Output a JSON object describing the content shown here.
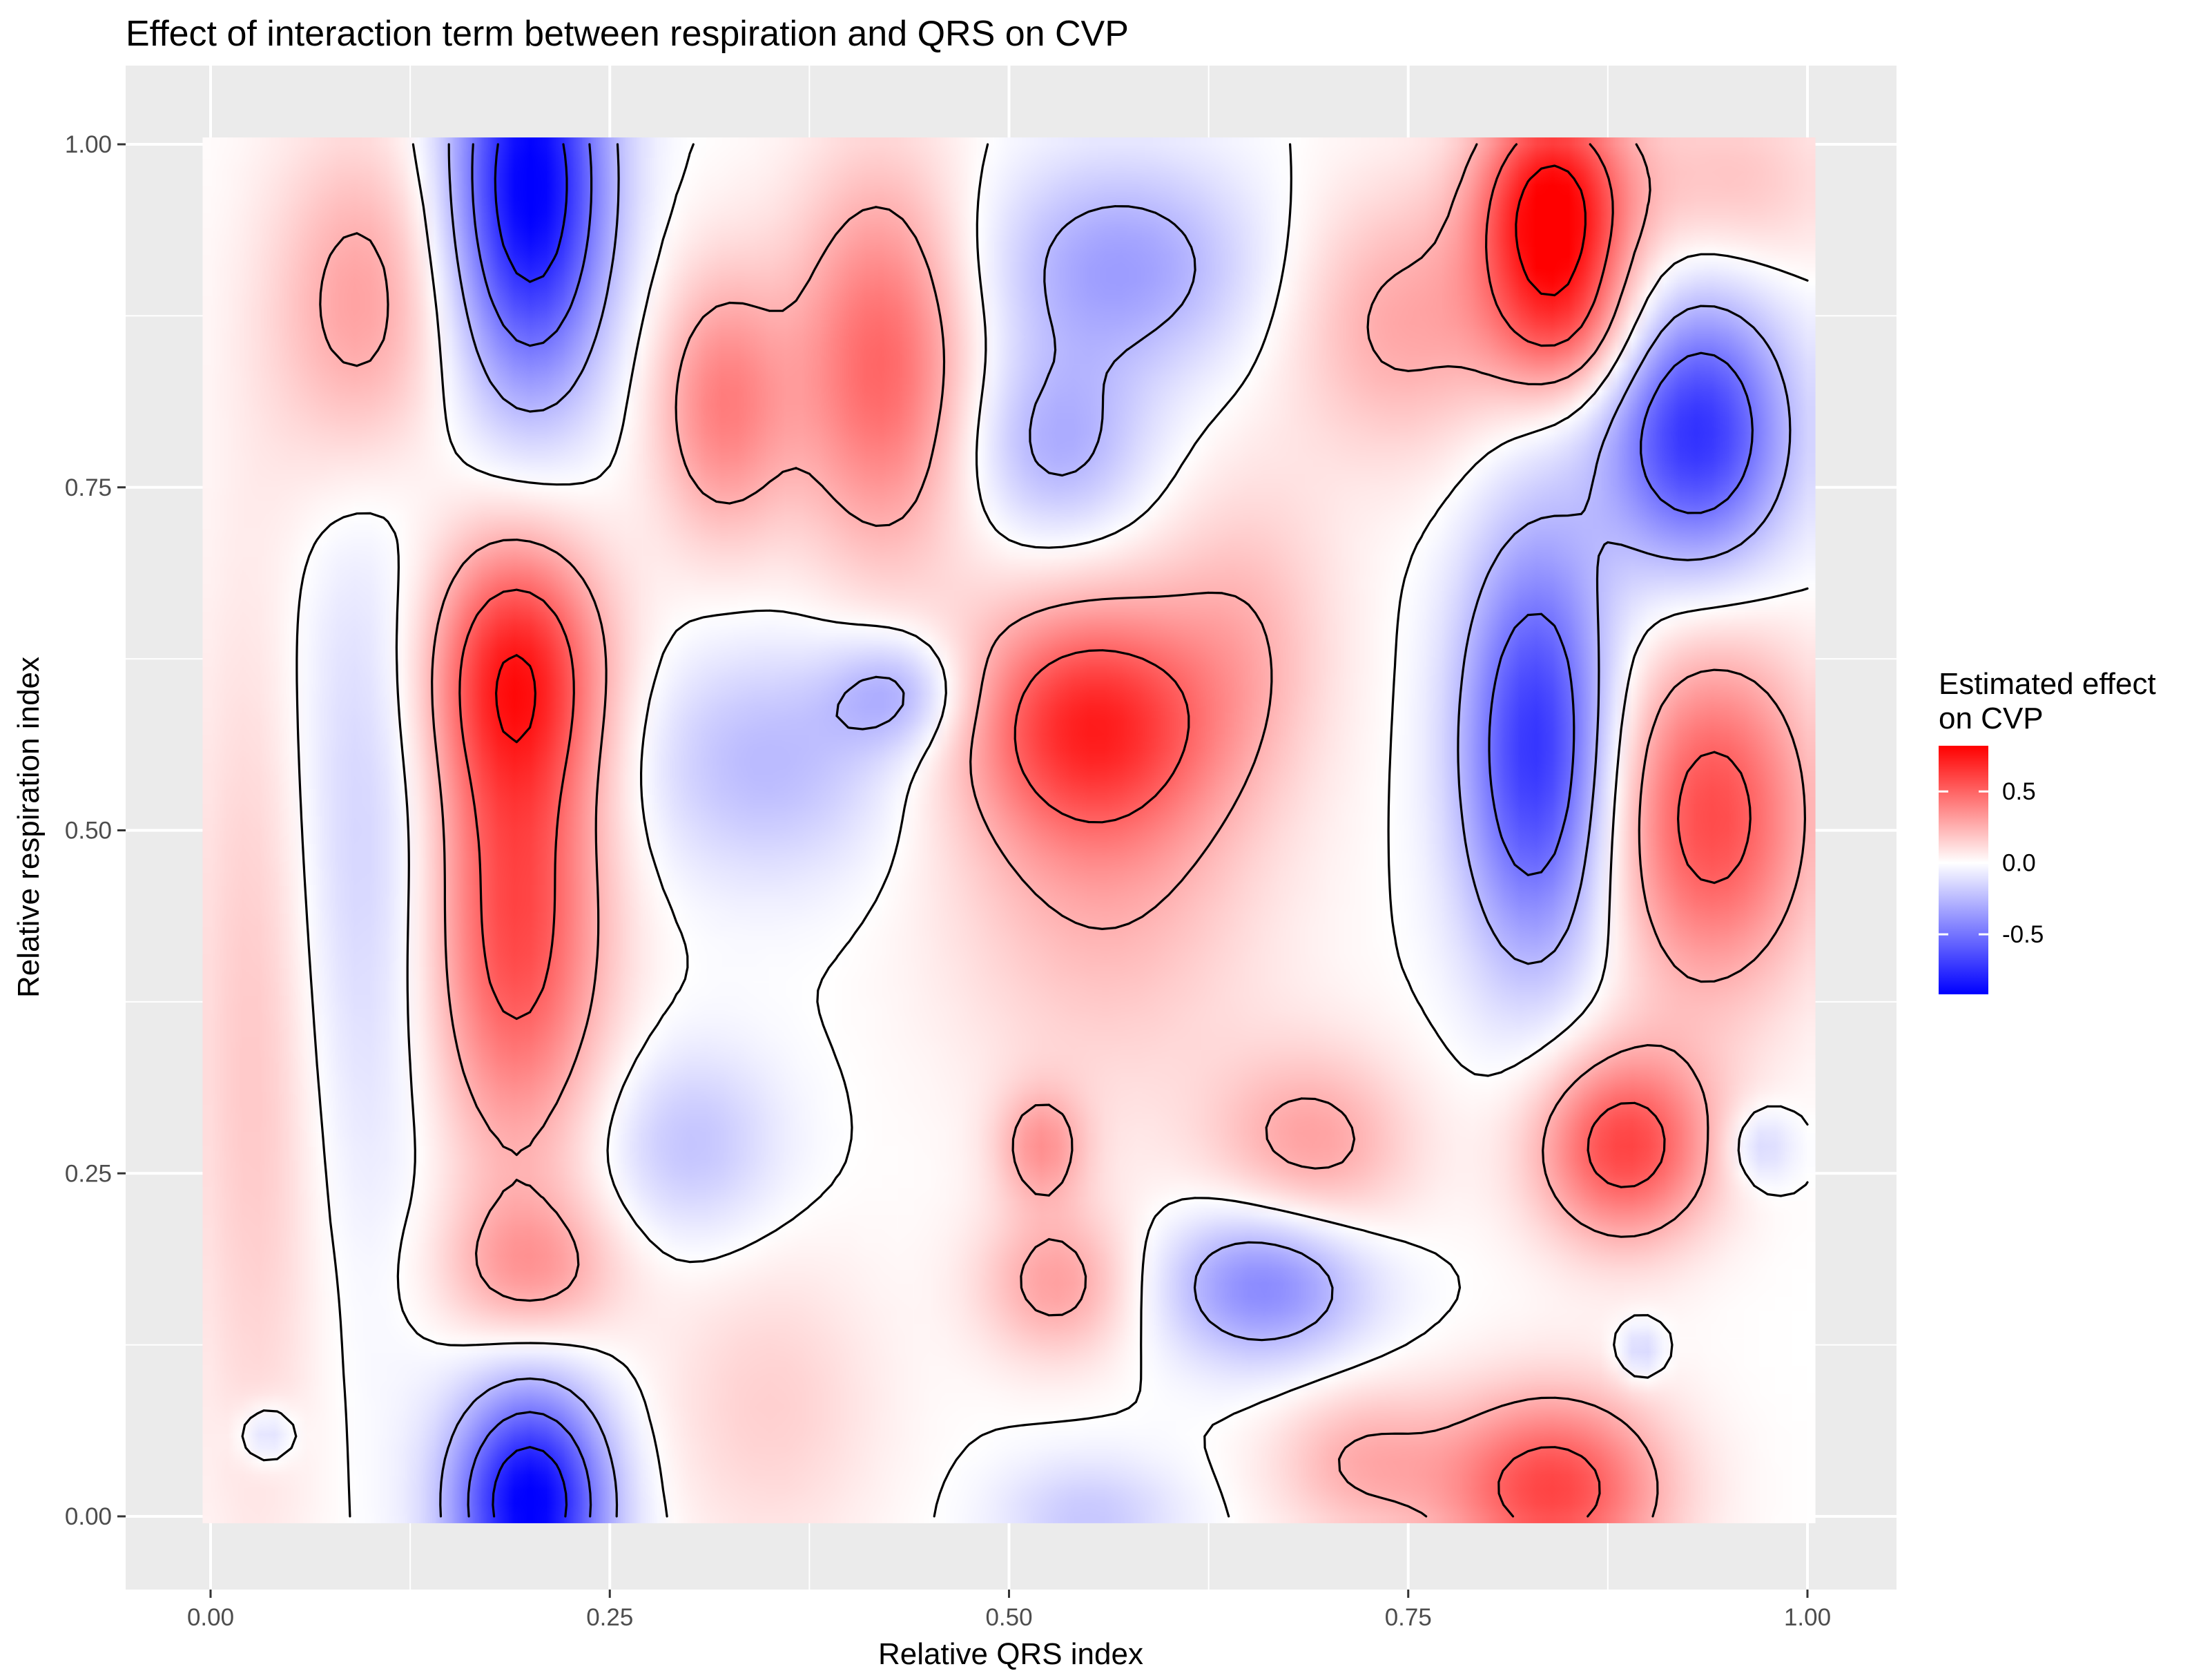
{
  "chart_data": {
    "type": "heatmap",
    "title": "Effect of interaction term between respiration and QRS on CVP",
    "xlabel": "Relative QRS index",
    "ylabel": "Relative respiration index",
    "xlim": [
      -0.05,
      1.05
    ],
    "ylim": [
      -0.05,
      1.05
    ],
    "x_ticks": [
      0.0,
      0.25,
      0.5,
      0.75,
      1.0
    ],
    "x_tick_labels": [
      "0.00",
      "0.25",
      "0.50",
      "0.75",
      "1.00"
    ],
    "y_ticks": [
      0.0,
      0.25,
      0.5,
      0.75,
      1.0
    ],
    "y_tick_labels": [
      "0.00",
      "0.25",
      "0.50",
      "0.75",
      "1.00"
    ],
    "grid": true,
    "legend": {
      "title_lines": [
        "Estimated effect",
        "on CVP"
      ],
      "position": "right",
      "range": [
        -0.92,
        0.82
      ],
      "breaks": [
        0.5,
        0.0,
        -0.5
      ],
      "break_labels": [
        "0.5",
        "0.0",
        "-0.5"
      ],
      "color_low": "#0000FF",
      "color_mid": "#FFFFFF",
      "color_high": "#FF0000"
    },
    "contour_levels": [
      -0.75,
      -0.5,
      -0.25,
      0.0,
      0.25,
      0.5,
      0.75
    ],
    "features": [
      {
        "x": 0.2,
        "y": 0.97,
        "sx": 0.034,
        "sy": 0.105,
        "amp": -0.95
      },
      {
        "x": 0.2,
        "y": 0.01,
        "sx": 0.034,
        "sy": 0.06,
        "amp": -0.95
      },
      {
        "x": 0.095,
        "y": 0.88,
        "sx": 0.04,
        "sy": 0.09,
        "amp": 0.33
      },
      {
        "x": 0.32,
        "y": 0.81,
        "sx": 0.03,
        "sy": 0.07,
        "amp": 0.4
      },
      {
        "x": 0.42,
        "y": 0.84,
        "sx": 0.04,
        "sy": 0.1,
        "amp": 0.5
      },
      {
        "x": 0.19,
        "y": 0.62,
        "sx": 0.04,
        "sy": 0.07,
        "amp": 0.62
      },
      {
        "x": 0.19,
        "y": 0.43,
        "sx": 0.04,
        "sy": 0.12,
        "amp": 0.6
      },
      {
        "x": 0.1,
        "y": 0.5,
        "sx": 0.04,
        "sy": 0.2,
        "amp": -0.2
      },
      {
        "x": 0.57,
        "y": 0.91,
        "sx": 0.06,
        "sy": 0.055,
        "amp": -0.35
      },
      {
        "x": 0.53,
        "y": 0.78,
        "sx": 0.04,
        "sy": 0.05,
        "amp": -0.3
      },
      {
        "x": 0.84,
        "y": 0.95,
        "sx": 0.033,
        "sy": 0.06,
        "amp": 0.85
      },
      {
        "x": 0.745,
        "y": 0.87,
        "sx": 0.05,
        "sy": 0.07,
        "amp": 0.28
      },
      {
        "x": 0.95,
        "y": 0.97,
        "sx": 0.05,
        "sy": 0.05,
        "amp": 0.2
      },
      {
        "x": 0.93,
        "y": 0.79,
        "sx": 0.04,
        "sy": 0.07,
        "amp": -0.75
      },
      {
        "x": 0.85,
        "y": 0.86,
        "sx": 0.035,
        "sy": 0.04,
        "amp": 0.3
      },
      {
        "x": 0.83,
        "y": 0.56,
        "sx": 0.033,
        "sy": 0.11,
        "amp": -0.75
      },
      {
        "x": 0.94,
        "y": 0.51,
        "sx": 0.045,
        "sy": 0.09,
        "amp": 0.58
      },
      {
        "x": 0.55,
        "y": 0.58,
        "sx": 0.055,
        "sy": 0.06,
        "amp": 0.55
      },
      {
        "x": 0.56,
        "y": 0.48,
        "sx": 0.07,
        "sy": 0.12,
        "amp": 0.25
      },
      {
        "x": 0.35,
        "y": 0.55,
        "sx": 0.06,
        "sy": 0.06,
        "amp": -0.25
      },
      {
        "x": 0.43,
        "y": 0.6,
        "sx": 0.03,
        "sy": 0.03,
        "amp": -0.3
      },
      {
        "x": 0.3,
        "y": 0.27,
        "sx": 0.04,
        "sy": 0.05,
        "amp": -0.22
      },
      {
        "x": 0.2,
        "y": 0.18,
        "sx": 0.04,
        "sy": 0.04,
        "amp": 0.3
      },
      {
        "x": 0.66,
        "y": 0.17,
        "sx": 0.045,
        "sy": 0.04,
        "amp": -0.45
      },
      {
        "x": 0.69,
        "y": 0.27,
        "sx": 0.045,
        "sy": 0.05,
        "amp": 0.3
      },
      {
        "x": 0.52,
        "y": 0.27,
        "sx": 0.02,
        "sy": 0.03,
        "amp": 0.3
      },
      {
        "x": 0.885,
        "y": 0.27,
        "sx": 0.04,
        "sy": 0.05,
        "amp": 0.6
      },
      {
        "x": 0.97,
        "y": 0.27,
        "sx": 0.015,
        "sy": 0.02,
        "amp": -0.2
      },
      {
        "x": 0.84,
        "y": 0.02,
        "sx": 0.05,
        "sy": 0.05,
        "amp": 0.6
      },
      {
        "x": 0.72,
        "y": 0.04,
        "sx": 0.04,
        "sy": 0.04,
        "amp": 0.25
      },
      {
        "x": 0.55,
        "y": 0.0,
        "sx": 0.04,
        "sy": 0.03,
        "amp": -0.2
      },
      {
        "x": 0.53,
        "y": 0.17,
        "sx": 0.035,
        "sy": 0.04,
        "amp": 0.3
      },
      {
        "x": 0.035,
        "y": 0.06,
        "sx": 0.012,
        "sy": 0.015,
        "amp": -0.2
      },
      {
        "x": 0.895,
        "y": 0.12,
        "sx": 0.01,
        "sy": 0.015,
        "amp": -0.2
      },
      {
        "x": 0.03,
        "y": 0.35,
        "sx": 0.03,
        "sy": 0.25,
        "amp": 0.2
      },
      {
        "x": 0.35,
        "y": 0.08,
        "sx": 0.05,
        "sy": 0.08,
        "amp": 0.15
      },
      {
        "x": 0.65,
        "y": 0.65,
        "sx": 0.04,
        "sy": 0.08,
        "amp": 0.18
      }
    ]
  }
}
